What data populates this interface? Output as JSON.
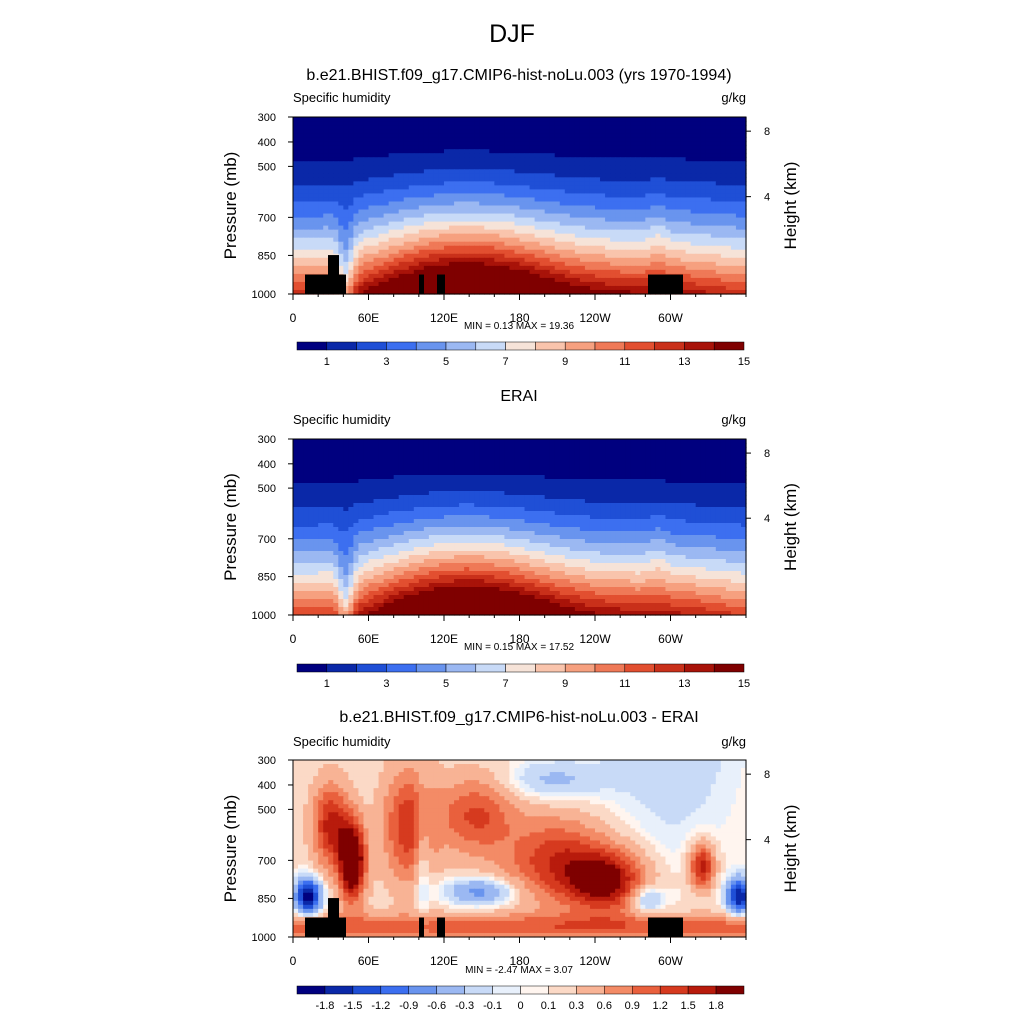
{
  "page": {
    "title": "DJF"
  },
  "colors": {
    "abs_palette": [
      "#00007f",
      "#0a28a8",
      "#1f4fd6",
      "#3c6ff0",
      "#6994ee",
      "#9bb8f2",
      "#c8daf7",
      "#f6e3d8",
      "#f9c4ac",
      "#f6a07f",
      "#ef7957",
      "#e24f30",
      "#c9301a",
      "#a81309",
      "#7f0000"
    ],
    "diff_palette": [
      "#00007f",
      "#0a28a8",
      "#1f4fd6",
      "#3c6ff0",
      "#6994ee",
      "#9bb8f2",
      "#c8daf7",
      "#e8f0fb",
      "#fff5ef",
      "#fbd9c6",
      "#f8b395",
      "#f38b66",
      "#e9603d",
      "#d63a1f",
      "#b81b0c",
      "#7f0000"
    ],
    "topo": "#000000"
  },
  "chart_data": [
    {
      "type": "heatmap",
      "title": "b.e21.BHIST.f09_g17.CMIP6-hist-noLu.003 (yrs 1970-1994)",
      "left_label": "Specific humidity",
      "right_label": "g/kg",
      "ylabel": "Pressure (mb)",
      "ylabel_right": "Height (km)",
      "y_ticks": [
        "300",
        "400",
        "500",
        "700",
        "850",
        "1000"
      ],
      "y_right_ticks": [
        "8",
        "4"
      ],
      "x_ticks": [
        "0",
        "60E",
        "120E",
        "180",
        "120W",
        "60W"
      ],
      "x_range": [
        0,
        360
      ],
      "p_range": [
        300,
        1000
      ],
      "stats": "MIN =   0.13  MAX =  19.36",
      "colorbar_labels": [
        "1",
        "3",
        "5",
        "7",
        "9",
        "11",
        "13",
        "15"
      ],
      "field": "abs",
      "model_topography": true
    },
    {
      "type": "heatmap",
      "title": "ERAI",
      "left_label": "Specific humidity",
      "right_label": "g/kg",
      "ylabel": "Pressure (mb)",
      "ylabel_right": "Height (km)",
      "y_ticks": [
        "300",
        "400",
        "500",
        "700",
        "850",
        "1000"
      ],
      "y_right_ticks": [
        "8",
        "4"
      ],
      "x_ticks": [
        "0",
        "60E",
        "120E",
        "180",
        "120W",
        "60W"
      ],
      "x_range": [
        0,
        360
      ],
      "p_range": [
        300,
        1000
      ],
      "stats": "MIN =   0.15  MAX =  17.52",
      "colorbar_labels": [
        "1",
        "3",
        "5",
        "7",
        "9",
        "11",
        "13",
        "15"
      ],
      "field": "abs",
      "model_topography": false
    },
    {
      "type": "heatmap",
      "title": "b.e21.BHIST.f09_g17.CMIP6-hist-noLu.003 - ERAI",
      "left_label": "Specific humidity",
      "right_label": "g/kg",
      "ylabel": "Pressure (mb)",
      "ylabel_right": "Height (km)",
      "y_ticks": [
        "300",
        "400",
        "500",
        "700",
        "850",
        "1000"
      ],
      "y_right_ticks": [
        "8",
        "4"
      ],
      "x_ticks": [
        "0",
        "60E",
        "120E",
        "180",
        "120W",
        "60W"
      ],
      "x_range": [
        0,
        360
      ],
      "p_range": [
        300,
        1000
      ],
      "stats": "MIN =  -2.47  MAX =   3.07",
      "colorbar_labels": [
        "-1.8",
        "-1.5",
        "-1.2",
        "-0.9",
        "-0.6",
        "-0.3",
        "-0.1",
        "0",
        "0.1",
        "0.3",
        "0.6",
        "0.9",
        "1.2",
        "1.5",
        "1.8"
      ],
      "field": "diff",
      "model_topography": true
    }
  ]
}
